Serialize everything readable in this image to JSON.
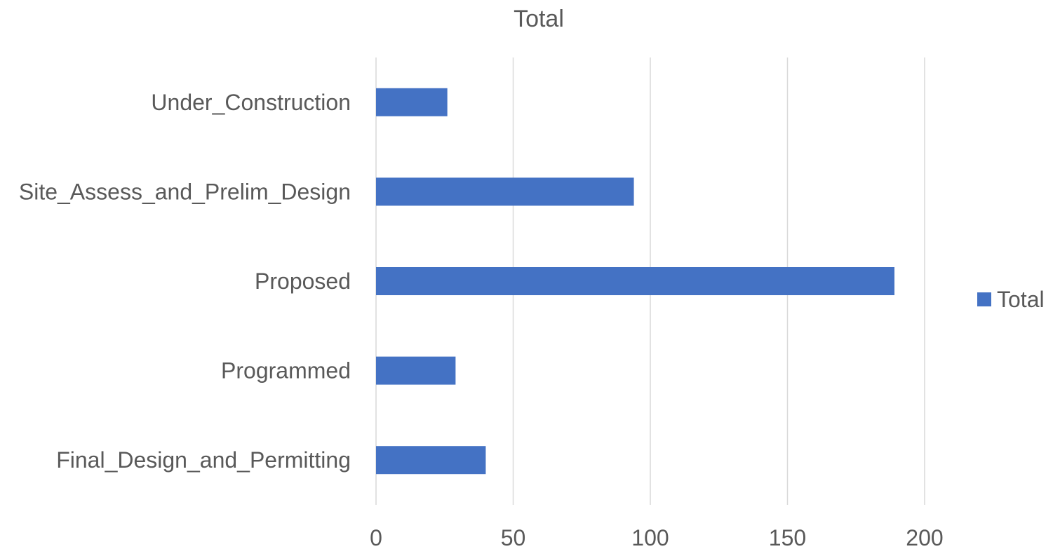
{
  "chart_data": {
    "type": "bar",
    "orientation": "horizontal",
    "title": "Total",
    "xlabel": "",
    "ylabel": "",
    "categories": [
      "Under_Construction",
      "Site_Assess_and_Prelim_Design",
      "Proposed",
      "Programmed",
      "Final_Design_and_Permitting"
    ],
    "series": [
      {
        "name": "Total",
        "values": [
          26,
          94,
          189,
          29,
          40
        ],
        "color": "#4472c4"
      }
    ],
    "xlim": [
      0,
      200
    ],
    "x_ticks": [
      "0",
      "50",
      "100",
      "150",
      "200"
    ],
    "grid": true,
    "legend": "right"
  }
}
